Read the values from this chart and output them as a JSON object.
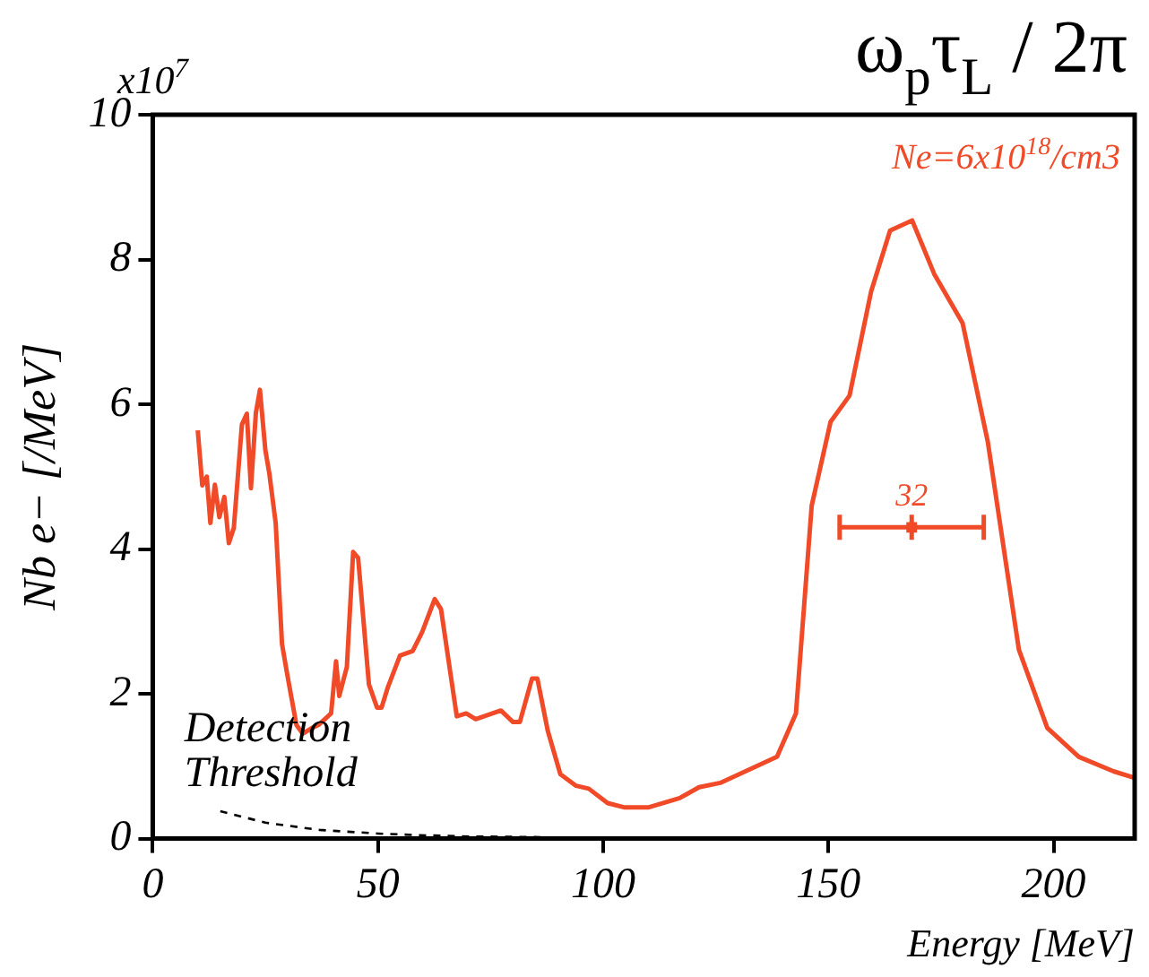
{
  "chart_data": {
    "type": "line",
    "title": "ω$_{p}$τ$_{L}$ / 2π",
    "xlabel": "Energy [MeV]",
    "ylabel": "Nb e− [/MeV]",
    "xlim": [
      0,
      218
    ],
    "xticks": [
      0,
      50,
      100,
      150,
      200
    ],
    "ylim": [
      0,
      10
    ],
    "yticks": [
      0,
      2,
      4,
      6,
      8,
      10
    ],
    "grid": false,
    "legend": false,
    "marker": "none",
    "annotations": [
      "x10$^{7}$",
      "Ne=6x10$^{18}$/cm3",
      {
        "text": "32",
        "x": 168.5,
        "y": 4.3
      },
      {
        "text": "Detection Threshold",
        "x": 15,
        "y": 0.38
      }
    ],
    "series": [
      {
        "color": "#f04a28",
        "x": [
          10,
          11,
          12,
          12.8,
          13.8,
          14.8,
          15.9,
          16.9,
          18,
          19.8,
          20.9,
          21.8,
          22.9,
          23.8,
          25,
          25.9,
          27.3,
          28.7,
          29.8,
          31.9,
          33.3,
          35.4,
          36.8,
          39.6,
          40.7,
          41.4,
          43.1,
          44.5,
          45.6,
          48,
          49.8,
          50.8,
          52.2,
          54.9,
          57.7,
          59.8,
          62.6,
          64,
          67.5,
          69.6,
          71.7,
          77.3,
          80,
          81.5,
          84.2,
          85.4,
          87.7,
          90.5,
          94,
          96.8,
          101,
          104.8,
          110,
          117,
          121.3,
          126,
          133,
          138.6,
          142.8,
          146.3,
          150.5,
          154.7,
          159.5,
          163.7,
          168.6,
          173.5,
          179.8,
          185.4,
          192.3,
          198.6,
          205.6,
          213.3,
          218
        ],
        "values": [
          5.64,
          4.88,
          5.0,
          4.36,
          4.89,
          4.44,
          4.72,
          4.08,
          4.29,
          5.72,
          5.87,
          4.84,
          5.88,
          6.2,
          5.37,
          5.04,
          4.36,
          2.69,
          2.29,
          1.57,
          1.45,
          1.53,
          1.57,
          1.73,
          2.45,
          1.97,
          2.37,
          3.96,
          3.88,
          2.13,
          1.81,
          1.81,
          2.09,
          2.53,
          2.59,
          2.85,
          3.31,
          3.17,
          1.69,
          1.73,
          1.65,
          1.77,
          1.61,
          1.61,
          2.21,
          2.21,
          1.49,
          0.89,
          0.73,
          0.69,
          0.49,
          0.43,
          0.43,
          0.56,
          0.71,
          0.77,
          0.97,
          1.13,
          1.73,
          4.6,
          5.76,
          6.12,
          7.56,
          8.4,
          8.54,
          7.8,
          7.12,
          5.48,
          2.61,
          1.53,
          1.13,
          0.93,
          0.84
        ]
      },
      {
        "color": "#000000",
        "line_style": "dashed",
        "x": [
          15,
          25,
          37,
          50,
          58,
          70,
          87
        ],
        "values": [
          0.38,
          0.22,
          0.12,
          0.07,
          0.05,
          0.03,
          0.02
        ]
      },
      {
        "type": "scatter",
        "color": "#f04a28",
        "marker": "square",
        "x": [
          168.5
        ],
        "values": [
          4.3
        ],
        "xerrors": [
          [
            152.5,
            184.5
          ]
        ]
      }
    ]
  }
}
